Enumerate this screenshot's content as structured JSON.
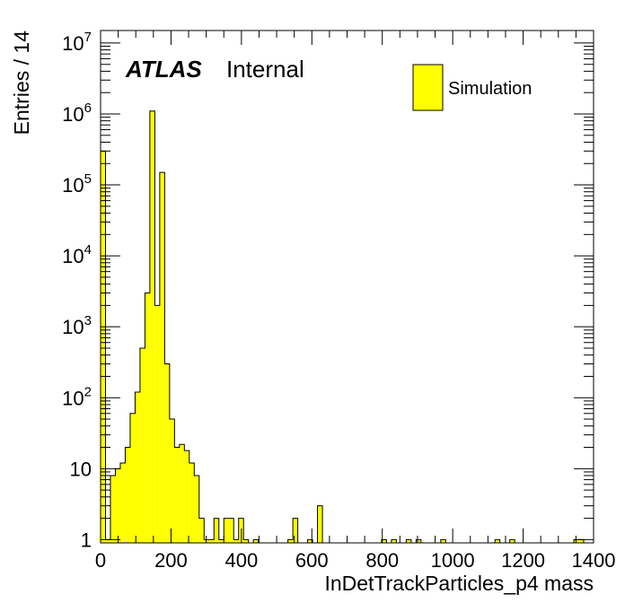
{
  "chart_data": {
    "type": "bar",
    "title": "",
    "xlabel": "InDetTrackParticles_p4 mass",
    "ylabel": "Entries / 14",
    "xlim": [
      0,
      1400
    ],
    "ylim": [
      0.9,
      15000000
    ],
    "yscale": "log",
    "bin_width": 14,
    "x_ticks": [
      0,
      200,
      400,
      600,
      800,
      1000,
      1200,
      1400
    ],
    "y_ticks": [
      {
        "value": 1,
        "base": "1",
        "exp": ""
      },
      {
        "value": 10,
        "base": "10",
        "exp": ""
      },
      {
        "value": 100,
        "base": "10",
        "exp": "2"
      },
      {
        "value": 1000,
        "base": "10",
        "exp": "3"
      },
      {
        "value": 10000,
        "base": "10",
        "exp": "4"
      },
      {
        "value": 100000,
        "base": "10",
        "exp": "5"
      },
      {
        "value": 1000000,
        "base": "10",
        "exp": "6"
      },
      {
        "value": 10000000,
        "base": "10",
        "exp": "7"
      }
    ],
    "label_atlas": "ATLAS",
    "label_internal": "Internal",
    "legend": {
      "position": "top-right",
      "entry": "Simulation"
    },
    "fill_color": "#ffff00",
    "series": [
      {
        "name": "Simulation",
        "bins": [
          [
            0,
            300000
          ],
          [
            14,
            1
          ],
          [
            28,
            8
          ],
          [
            42,
            10
          ],
          [
            56,
            12
          ],
          [
            70,
            20
          ],
          [
            84,
            60
          ],
          [
            98,
            120
          ],
          [
            112,
            500
          ],
          [
            126,
            3000
          ],
          [
            140,
            1100000
          ],
          [
            154,
            2000
          ],
          [
            168,
            150000
          ],
          [
            182,
            300
          ],
          [
            196,
            50
          ],
          [
            210,
            20
          ],
          [
            224,
            22
          ],
          [
            238,
            18
          ],
          [
            252,
            12
          ],
          [
            266,
            8
          ],
          [
            280,
            2
          ],
          [
            294,
            1
          ],
          [
            308,
            1
          ],
          [
            322,
            2
          ],
          [
            336,
            1
          ],
          [
            350,
            2
          ],
          [
            364,
            2
          ],
          [
            378,
            1
          ],
          [
            392,
            2
          ],
          [
            406,
            1
          ],
          [
            434,
            1
          ],
          [
            532,
            1
          ],
          [
            546,
            2
          ],
          [
            588,
            1
          ],
          [
            616,
            3
          ],
          [
            798,
            1
          ],
          [
            826,
            1
          ],
          [
            868,
            1
          ],
          [
            896,
            1
          ],
          [
            966,
            1
          ],
          [
            1120,
            1
          ],
          [
            1162,
            1
          ],
          [
            1344,
            1
          ],
          [
            1358,
            1
          ]
        ]
      }
    ]
  }
}
